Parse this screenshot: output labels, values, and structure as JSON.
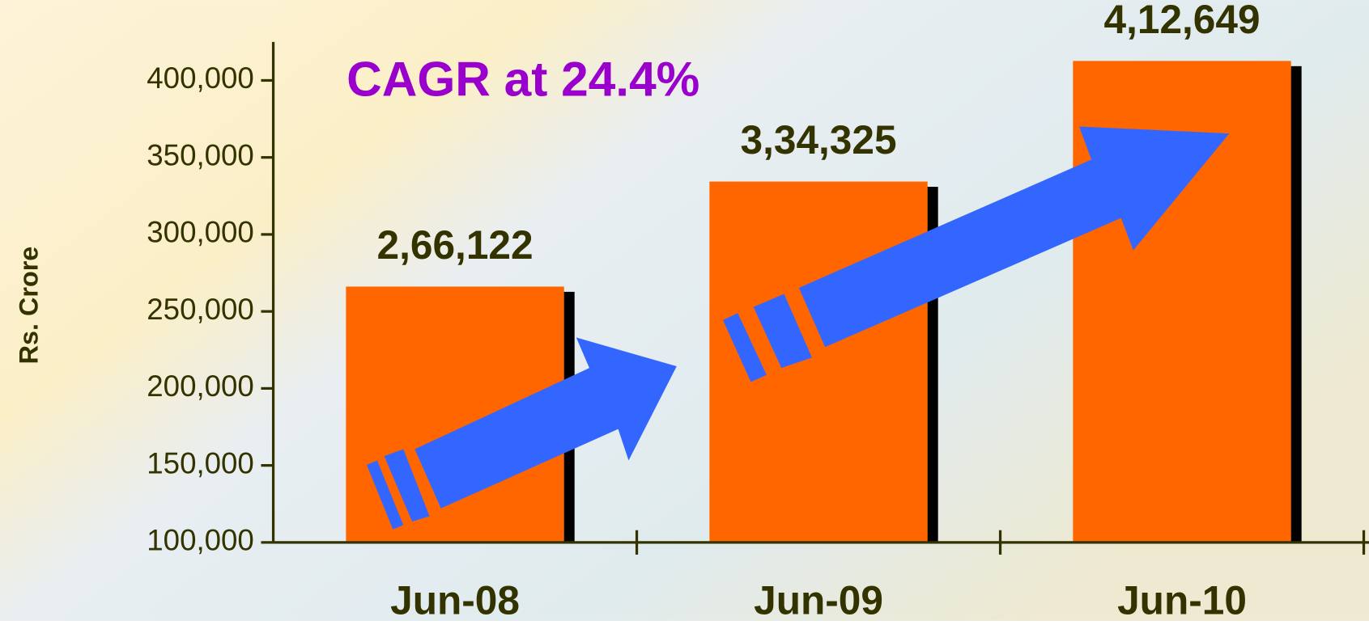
{
  "chart_data": {
    "type": "bar",
    "annotation": "CAGR at 24.4%",
    "y_label": "Rs. Crore",
    "categories": [
      "Jun-08",
      "Jun-09",
      "Jun-10"
    ],
    "values": [
      266122,
      334325,
      412649
    ],
    "value_labels": [
      "2,66,122",
      "3,34,325",
      "4,12,649"
    ],
    "color": "#ff6600",
    "ylim": [
      100000,
      425000
    ],
    "yticks": [
      {
        "value": 100000,
        "label": "100,000"
      },
      {
        "value": 150000,
        "label": "150,000"
      },
      {
        "value": 200000,
        "label": "200,000"
      },
      {
        "value": 250000,
        "label": "250,000"
      },
      {
        "value": 300000,
        "label": "300,000"
      },
      {
        "value": 350000,
        "label": "350,000"
      },
      {
        "value": 400000,
        "label": "400,000"
      }
    ]
  }
}
